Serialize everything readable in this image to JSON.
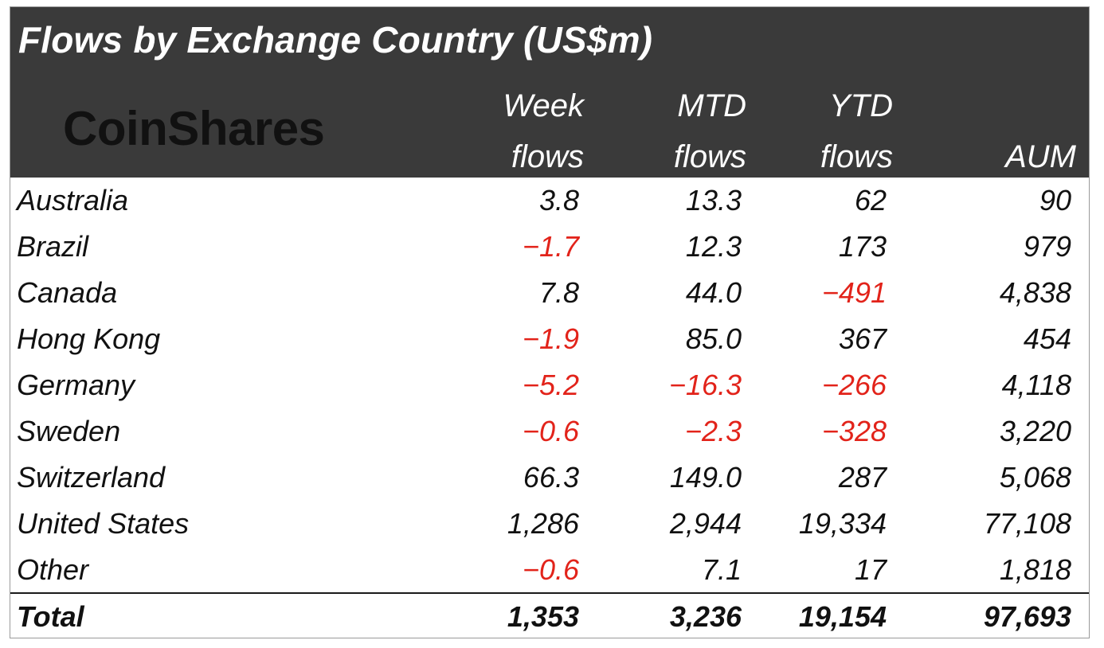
{
  "chart_data": {
    "type": "table",
    "title": "Flows by Exchange Country (US$m)",
    "brand": "CoinShares",
    "columns": [
      {
        "key": "country",
        "label_lines": []
      },
      {
        "key": "week",
        "label_lines": [
          "Week",
          "flows"
        ]
      },
      {
        "key": "mtd",
        "label_lines": [
          "MTD",
          "flows"
        ]
      },
      {
        "key": "ytd",
        "label_lines": [
          "YTD",
          "flows"
        ]
      },
      {
        "key": "aum",
        "label_lines": [
          "",
          "AUM"
        ]
      }
    ],
    "rows": [
      {
        "country": "Australia",
        "week": "3.8",
        "mtd": "13.3",
        "ytd": "62",
        "aum": "90"
      },
      {
        "country": "Brazil",
        "week": "-1.7",
        "mtd": "12.3",
        "ytd": "173",
        "aum": "979"
      },
      {
        "country": "Canada",
        "week": "7.8",
        "mtd": "44.0",
        "ytd": "-491",
        "aum": "4,838"
      },
      {
        "country": "Hong Kong",
        "week": "-1.9",
        "mtd": "85.0",
        "ytd": "367",
        "aum": "454"
      },
      {
        "country": "Germany",
        "week": "-5.2",
        "mtd": "-16.3",
        "ytd": "-266",
        "aum": "4,118"
      },
      {
        "country": "Sweden",
        "week": "-0.6",
        "mtd": "-2.3",
        "ytd": "-328",
        "aum": "3,220"
      },
      {
        "country": "Switzerland",
        "week": "66.3",
        "mtd": "149.0",
        "ytd": "287",
        "aum": "5,068"
      },
      {
        "country": "United States",
        "week": "1,286",
        "mtd": "2,944",
        "ytd": "19,334",
        "aum": "77,108"
      },
      {
        "country": "Other",
        "week": "-0.6",
        "mtd": "7.1",
        "ytd": "17",
        "aum": "1,818"
      }
    ],
    "total": {
      "country": "Total",
      "week": "1,353",
      "mtd": "3,236",
      "ytd": "19,154",
      "aum": "97,693"
    },
    "colors": {
      "header_bg": "#3a3a3a",
      "header_text": "#ffffff",
      "logo_text": "#111111",
      "positive_text": "#111111",
      "negative_text": "#e2231a"
    }
  }
}
